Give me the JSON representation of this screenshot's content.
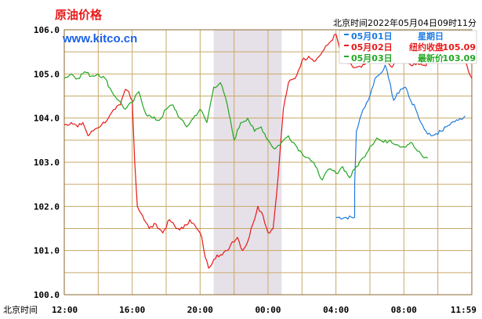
{
  "chart_data": {
    "type": "line",
    "title": "原油价格",
    "watermark": "www.kitco.cn",
    "timestamp": "北京时间2022年05月04日09时11分",
    "x_axis_label": "北京时间",
    "x_ticks": [
      "12:00",
      "16:00",
      "20:00",
      "00:00",
      "04:00",
      "08:00",
      "11:59"
    ],
    "y_ticks": [
      "100.0",
      "101.0",
      "102.0",
      "103.0",
      "104.0",
      "105.0",
      "106.0"
    ],
    "ylim": [
      100.0,
      106.0
    ],
    "xlim_hours": [
      0,
      24
    ],
    "grid": true,
    "grid_color": "#c8a96a",
    "highlight": {
      "from": 8.8,
      "to": 12.8,
      "color": "#e6e0e8"
    },
    "legend": [
      {
        "key": "blue",
        "date": "05月01日",
        "desc": "星期日",
        "value": "",
        "color": "#1e7be0"
      },
      {
        "key": "red",
        "date": "05月02日",
        "desc": "纽约收盘",
        "value": "105.09",
        "color": "#e8191a"
      },
      {
        "key": "green",
        "date": "05月03日",
        "desc": "最新价",
        "value": "103.09",
        "color": "#22a722"
      }
    ],
    "series": [
      {
        "name": "05月01日",
        "color": "#1e7be0",
        "points": [
          [
            16.0,
            101.75
          ],
          [
            17.1,
            101.75
          ],
          [
            17.1,
            102.5
          ],
          [
            17.2,
            103.7
          ],
          [
            17.6,
            104.2
          ],
          [
            18.0,
            104.5
          ],
          [
            18.3,
            104.9
          ],
          [
            18.6,
            105.0
          ],
          [
            18.9,
            105.2
          ],
          [
            19.1,
            104.9
          ],
          [
            19.4,
            104.4
          ],
          [
            19.8,
            104.65
          ],
          [
            20.1,
            104.7
          ],
          [
            20.4,
            104.4
          ],
          [
            20.7,
            104.2
          ],
          [
            21.0,
            103.9
          ],
          [
            21.3,
            103.7
          ],
          [
            21.6,
            103.6
          ],
          [
            21.9,
            103.65
          ],
          [
            22.2,
            103.7
          ],
          [
            22.5,
            103.8
          ],
          [
            22.8,
            103.9
          ],
          [
            23.2,
            103.95
          ],
          [
            23.6,
            104.05
          ]
        ]
      },
      {
        "name": "05月02日",
        "color": "#e8191a",
        "points": [
          [
            0.0,
            103.85
          ],
          [
            0.4,
            103.9
          ],
          [
            0.8,
            103.8
          ],
          [
            1.1,
            103.9
          ],
          [
            1.4,
            103.6
          ],
          [
            1.8,
            103.75
          ],
          [
            2.2,
            103.85
          ],
          [
            2.6,
            104.0
          ],
          [
            3.0,
            104.2
          ],
          [
            3.3,
            104.3
          ],
          [
            3.6,
            104.65
          ],
          [
            3.8,
            104.6
          ],
          [
            4.0,
            104.4
          ],
          [
            4.15,
            103.0
          ],
          [
            4.3,
            102.0
          ],
          [
            4.6,
            101.8
          ],
          [
            5.0,
            101.5
          ],
          [
            5.4,
            101.6
          ],
          [
            5.8,
            101.4
          ],
          [
            6.2,
            101.7
          ],
          [
            6.6,
            101.5
          ],
          [
            7.0,
            101.5
          ],
          [
            7.4,
            101.7
          ],
          [
            7.8,
            101.5
          ],
          [
            8.1,
            101.3
          ],
          [
            8.3,
            100.85
          ],
          [
            8.5,
            100.6
          ],
          [
            8.8,
            100.8
          ],
          [
            9.0,
            100.9
          ],
          [
            9.3,
            100.9
          ],
          [
            9.6,
            101.0
          ],
          [
            9.9,
            101.2
          ],
          [
            10.2,
            101.3
          ],
          [
            10.5,
            101.0
          ],
          [
            10.8,
            101.2
          ],
          [
            11.1,
            101.6
          ],
          [
            11.4,
            102.0
          ],
          [
            11.7,
            101.8
          ],
          [
            12.0,
            101.4
          ],
          [
            12.3,
            101.5
          ],
          [
            12.6,
            102.7
          ],
          [
            12.9,
            104.2
          ],
          [
            13.2,
            104.8
          ],
          [
            13.6,
            104.9
          ],
          [
            14.0,
            105.3
          ],
          [
            14.4,
            105.4
          ],
          [
            14.8,
            105.3
          ],
          [
            15.2,
            105.5
          ],
          [
            15.6,
            105.7
          ],
          [
            16.0,
            105.9
          ],
          [
            16.2,
            105.6
          ],
          [
            16.5,
            105.3
          ],
          [
            17.0,
            105.15
          ],
          [
            17.5,
            105.15
          ],
          [
            18.0,
            105.3
          ],
          [
            18.5,
            105.4
          ],
          [
            19.0,
            105.25
          ],
          [
            19.3,
            105.15
          ],
          [
            19.6,
            105.35
          ],
          [
            20.0,
            105.3
          ],
          [
            20.4,
            105.2
          ],
          [
            20.8,
            105.25
          ],
          [
            21.2,
            105.2
          ],
          [
            21.6,
            105.3
          ],
          [
            22.0,
            105.4
          ],
          [
            22.4,
            105.6
          ],
          [
            22.8,
            105.7
          ],
          [
            23.2,
            105.5
          ],
          [
            23.6,
            105.3
          ],
          [
            24.0,
            104.9
          ]
        ]
      },
      {
        "name": "05月03日",
        "color": "#22a722",
        "points": [
          [
            0.0,
            104.9
          ],
          [
            0.4,
            105.0
          ],
          [
            0.8,
            104.9
          ],
          [
            1.2,
            105.05
          ],
          [
            1.6,
            104.95
          ],
          [
            2.0,
            105.0
          ],
          [
            2.4,
            104.9
          ],
          [
            2.8,
            104.6
          ],
          [
            3.2,
            104.4
          ],
          [
            3.6,
            104.2
          ],
          [
            4.0,
            104.35
          ],
          [
            4.4,
            104.6
          ],
          [
            4.8,
            104.1
          ],
          [
            5.2,
            104.0
          ],
          [
            5.6,
            103.95
          ],
          [
            6.0,
            104.2
          ],
          [
            6.4,
            104.3
          ],
          [
            6.8,
            104.0
          ],
          [
            7.2,
            103.8
          ],
          [
            7.6,
            104.0
          ],
          [
            8.0,
            104.2
          ],
          [
            8.4,
            103.9
          ],
          [
            8.8,
            104.7
          ],
          [
            9.2,
            104.8
          ],
          [
            9.6,
            104.3
          ],
          [
            10.0,
            103.5
          ],
          [
            10.4,
            103.9
          ],
          [
            10.8,
            104.0
          ],
          [
            11.2,
            103.7
          ],
          [
            11.6,
            103.8
          ],
          [
            12.0,
            103.5
          ],
          [
            12.4,
            103.3
          ],
          [
            12.8,
            103.45
          ],
          [
            13.2,
            103.6
          ],
          [
            13.6,
            103.4
          ],
          [
            14.0,
            103.2
          ],
          [
            14.4,
            103.1
          ],
          [
            14.8,
            102.9
          ],
          [
            15.2,
            102.6
          ],
          [
            15.6,
            102.85
          ],
          [
            16.0,
            102.75
          ],
          [
            16.4,
            102.9
          ],
          [
            16.8,
            102.65
          ],
          [
            17.2,
            102.9
          ],
          [
            17.6,
            103.1
          ],
          [
            18.0,
            103.35
          ],
          [
            18.4,
            103.55
          ],
          [
            18.8,
            103.45
          ],
          [
            19.2,
            103.5
          ],
          [
            19.6,
            103.4
          ],
          [
            20.0,
            103.35
          ],
          [
            20.4,
            103.45
          ],
          [
            20.8,
            103.25
          ],
          [
            21.2,
            103.1
          ],
          [
            21.4,
            103.09
          ]
        ]
      }
    ]
  }
}
